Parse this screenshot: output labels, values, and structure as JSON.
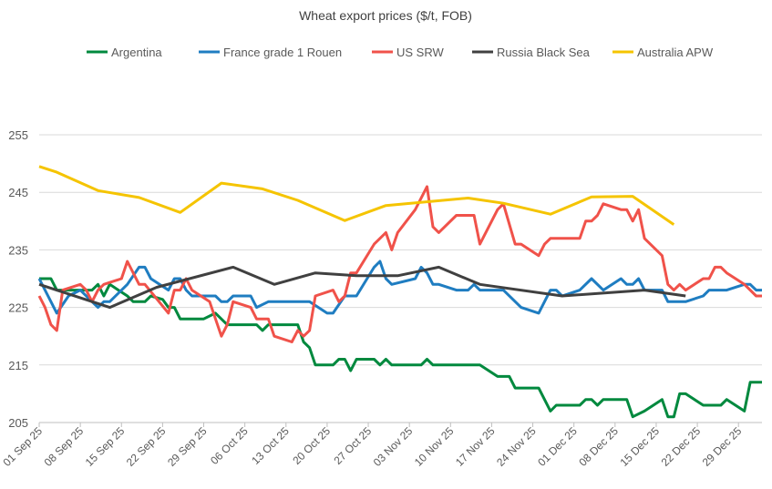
{
  "chart_data": {
    "type": "line",
    "title": "Wheat export prices ($/t, FOB)",
    "xlabel": "",
    "ylabel": "",
    "ylim": [
      205,
      255
    ],
    "xlim": [
      "2025-09-01",
      "2026-01-02"
    ],
    "y_ticks": [
      205,
      215,
      225,
      235,
      245,
      255
    ],
    "x_ticks": [
      {
        "date": "2025-09-01",
        "label": "01 Sep 25"
      },
      {
        "date": "2025-09-08",
        "label": "08 Sep 25"
      },
      {
        "date": "2025-09-15",
        "label": "15 Sep 25"
      },
      {
        "date": "2025-09-22",
        "label": "22 Sep 25"
      },
      {
        "date": "2025-09-29",
        "label": "29 Sep 25"
      },
      {
        "date": "2025-10-06",
        "label": "06 Oct 25"
      },
      {
        "date": "2025-10-13",
        "label": "13 Oct 25"
      },
      {
        "date": "2025-10-20",
        "label": "20 Oct 25"
      },
      {
        "date": "2025-10-27",
        "label": "27 Oct 25"
      },
      {
        "date": "2025-11-03",
        "label": "03 Nov 25"
      },
      {
        "date": "2025-11-10",
        "label": "10 Nov 25"
      },
      {
        "date": "2025-11-17",
        "label": "17 Nov 25"
      },
      {
        "date": "2025-11-24",
        "label": "24 Nov 25"
      },
      {
        "date": "2025-12-01",
        "label": "01 Dec 25"
      },
      {
        "date": "2025-12-08",
        "label": "08 Dec 25"
      },
      {
        "date": "2025-12-15",
        "label": "15 Dec 25"
      },
      {
        "date": "2025-12-22",
        "label": "22 Dec 25"
      },
      {
        "date": "2025-12-29",
        "label": "29 Dec 25"
      }
    ],
    "grid": true,
    "legend_position": "top",
    "series": [
      {
        "name": "Argentina",
        "color": "#00893E",
        "points": [
          [
            "2025-09-01",
            230
          ],
          [
            "2025-09-03",
            230
          ],
          [
            "2025-09-04",
            228
          ],
          [
            "2025-09-10",
            228
          ],
          [
            "2025-09-11",
            229
          ],
          [
            "2025-09-12",
            227
          ],
          [
            "2025-09-13",
            229
          ],
          [
            "2025-09-16",
            227
          ],
          [
            "2025-09-17",
            226
          ],
          [
            "2025-09-19",
            226
          ],
          [
            "2025-09-20",
            227
          ],
          [
            "2025-09-22",
            226.4
          ],
          [
            "2025-09-23",
            225
          ],
          [
            "2025-09-24",
            225
          ],
          [
            "2025-09-25",
            223
          ],
          [
            "2025-09-29",
            223
          ],
          [
            "2025-10-01",
            224
          ],
          [
            "2025-10-03",
            222
          ],
          [
            "2025-10-08",
            222
          ],
          [
            "2025-10-09",
            221
          ],
          [
            "2025-10-10",
            222
          ],
          [
            "2025-10-15",
            222
          ],
          [
            "2025-10-16",
            219
          ],
          [
            "2025-10-17",
            218
          ],
          [
            "2025-10-18",
            215
          ],
          [
            "2025-10-21",
            215
          ],
          [
            "2025-10-22",
            216
          ],
          [
            "2025-10-23",
            216
          ],
          [
            "2025-10-24",
            214
          ],
          [
            "2025-10-25",
            216
          ],
          [
            "2025-10-28",
            216
          ],
          [
            "2025-10-29",
            215
          ],
          [
            "2025-10-30",
            216
          ],
          [
            "2025-10-31",
            215
          ],
          [
            "2025-11-05",
            215
          ],
          [
            "2025-11-06",
            216
          ],
          [
            "2025-11-07",
            215
          ],
          [
            "2025-11-15",
            215
          ],
          [
            "2025-11-18",
            213
          ],
          [
            "2025-11-20",
            213
          ],
          [
            "2025-11-21",
            211
          ],
          [
            "2025-11-25",
            211
          ],
          [
            "2025-11-27",
            207
          ],
          [
            "2025-11-28",
            208
          ],
          [
            "2025-12-02",
            208
          ],
          [
            "2025-12-03",
            209
          ],
          [
            "2025-12-04",
            209
          ],
          [
            "2025-12-05",
            208
          ],
          [
            "2025-12-06",
            209
          ],
          [
            "2025-12-10",
            209
          ],
          [
            "2025-12-11",
            206
          ],
          [
            "2025-12-13",
            207
          ],
          [
            "2025-12-16",
            209
          ],
          [
            "2025-12-17",
            206
          ],
          [
            "2025-12-18",
            206
          ],
          [
            "2025-12-19",
            210
          ],
          [
            "2025-12-20",
            210
          ],
          [
            "2025-12-23",
            208
          ],
          [
            "2025-12-26",
            208
          ],
          [
            "2025-12-27",
            209
          ],
          [
            "2025-12-30",
            207
          ],
          [
            "2025-12-31",
            212
          ],
          [
            "2026-01-02",
            212
          ]
        ]
      },
      {
        "name": "France grade 1 Rouen",
        "color": "#1F7DC1",
        "points": [
          [
            "2025-09-01",
            230
          ],
          [
            "2025-09-03",
            226
          ],
          [
            "2025-09-04",
            224
          ],
          [
            "2025-09-06",
            227
          ],
          [
            "2025-09-08",
            228
          ],
          [
            "2025-09-10",
            226
          ],
          [
            "2025-09-11",
            225
          ],
          [
            "2025-09-12",
            226
          ],
          [
            "2025-09-13",
            226
          ],
          [
            "2025-09-16",
            229
          ],
          [
            "2025-09-18",
            232
          ],
          [
            "2025-09-19",
            232
          ],
          [
            "2025-09-20",
            230
          ],
          [
            "2025-09-23",
            228
          ],
          [
            "2025-09-24",
            230
          ],
          [
            "2025-09-25",
            230
          ],
          [
            "2025-09-26",
            228
          ],
          [
            "2025-09-27",
            227
          ],
          [
            "2025-10-01",
            227
          ],
          [
            "2025-10-02",
            226
          ],
          [
            "2025-10-03",
            226
          ],
          [
            "2025-10-04",
            227
          ],
          [
            "2025-10-07",
            227
          ],
          [
            "2025-10-08",
            225
          ],
          [
            "2025-10-10",
            226
          ],
          [
            "2025-10-17",
            226
          ],
          [
            "2025-10-20",
            224
          ],
          [
            "2025-10-21",
            224
          ],
          [
            "2025-10-23",
            227
          ],
          [
            "2025-10-25",
            227
          ],
          [
            "2025-10-28",
            232
          ],
          [
            "2025-10-29",
            233
          ],
          [
            "2025-10-30",
            230
          ],
          [
            "2025-10-31",
            229
          ],
          [
            "2025-11-04",
            230
          ],
          [
            "2025-11-05",
            232
          ],
          [
            "2025-11-06",
            231
          ],
          [
            "2025-11-07",
            229
          ],
          [
            "2025-11-08",
            229
          ],
          [
            "2025-11-11",
            228
          ],
          [
            "2025-11-13",
            228
          ],
          [
            "2025-11-14",
            229
          ],
          [
            "2025-11-15",
            228
          ],
          [
            "2025-11-19",
            228
          ],
          [
            "2025-11-22",
            225
          ],
          [
            "2025-11-25",
            224
          ],
          [
            "2025-11-27",
            228
          ],
          [
            "2025-11-28",
            228
          ],
          [
            "2025-11-29",
            227
          ],
          [
            "2025-12-02",
            228
          ],
          [
            "2025-12-04",
            230
          ],
          [
            "2025-12-06",
            228
          ],
          [
            "2025-12-09",
            230
          ],
          [
            "2025-12-10",
            229
          ],
          [
            "2025-12-11",
            229
          ],
          [
            "2025-12-12",
            230
          ],
          [
            "2025-12-13",
            228
          ],
          [
            "2025-12-16",
            228
          ],
          [
            "2025-12-17",
            226
          ],
          [
            "2025-12-20",
            226
          ],
          [
            "2025-12-23",
            227
          ],
          [
            "2025-12-24",
            228
          ],
          [
            "2025-12-27",
            228
          ],
          [
            "2025-12-30",
            229
          ],
          [
            "2025-12-31",
            229
          ],
          [
            "2026-01-01",
            228
          ],
          [
            "2026-01-02",
            228
          ]
        ]
      },
      {
        "name": "US SRW",
        "color": "#F0524A",
        "points": [
          [
            "2025-09-01",
            227
          ],
          [
            "2025-09-02",
            225
          ],
          [
            "2025-09-03",
            222
          ],
          [
            "2025-09-04",
            221
          ],
          [
            "2025-09-05",
            228
          ],
          [
            "2025-09-08",
            229
          ],
          [
            "2025-09-09",
            228
          ],
          [
            "2025-09-10",
            226
          ],
          [
            "2025-09-11",
            228
          ],
          [
            "2025-09-12",
            229
          ],
          [
            "2025-09-15",
            230
          ],
          [
            "2025-09-16",
            233
          ],
          [
            "2025-09-18",
            229
          ],
          [
            "2025-09-19",
            229
          ],
          [
            "2025-09-23",
            224
          ],
          [
            "2025-09-24",
            228
          ],
          [
            "2025-09-25",
            228
          ],
          [
            "2025-09-26",
            230
          ],
          [
            "2025-09-27",
            228
          ],
          [
            "2025-09-30",
            226
          ],
          [
            "2025-10-02",
            220
          ],
          [
            "2025-10-03",
            222
          ],
          [
            "2025-10-04",
            226
          ],
          [
            "2025-10-07",
            225
          ],
          [
            "2025-10-08",
            223
          ],
          [
            "2025-10-10",
            223
          ],
          [
            "2025-10-11",
            220
          ],
          [
            "2025-10-14",
            219
          ],
          [
            "2025-10-15",
            221
          ],
          [
            "2025-10-16",
            220
          ],
          [
            "2025-10-17",
            221
          ],
          [
            "2025-10-18",
            227
          ],
          [
            "2025-10-21",
            228
          ],
          [
            "2025-10-22",
            226
          ],
          [
            "2025-10-23",
            227
          ],
          [
            "2025-10-24",
            231
          ],
          [
            "2025-10-25",
            231
          ],
          [
            "2025-10-28",
            236
          ],
          [
            "2025-10-30",
            238
          ],
          [
            "2025-10-31",
            235
          ],
          [
            "2025-11-01",
            238
          ],
          [
            "2025-11-04",
            242
          ],
          [
            "2025-11-06",
            246
          ],
          [
            "2025-11-07",
            239
          ],
          [
            "2025-11-08",
            238
          ],
          [
            "2025-11-11",
            241
          ],
          [
            "2025-11-14",
            241
          ],
          [
            "2025-11-15",
            236
          ],
          [
            "2025-11-18",
            242
          ],
          [
            "2025-11-19",
            243
          ],
          [
            "2025-11-21",
            236
          ],
          [
            "2025-11-22",
            236
          ],
          [
            "2025-11-25",
            234
          ],
          [
            "2025-11-26",
            236
          ],
          [
            "2025-11-27",
            237
          ],
          [
            "2025-12-02",
            237
          ],
          [
            "2025-12-03",
            240
          ],
          [
            "2025-12-04",
            240
          ],
          [
            "2025-12-05",
            241
          ],
          [
            "2025-12-06",
            243
          ],
          [
            "2025-12-09",
            242
          ],
          [
            "2025-12-10",
            242
          ],
          [
            "2025-12-11",
            240
          ],
          [
            "2025-12-12",
            242
          ],
          [
            "2025-12-13",
            237
          ],
          [
            "2025-12-16",
            234
          ],
          [
            "2025-12-17",
            229
          ],
          [
            "2025-12-18",
            228
          ],
          [
            "2025-12-19",
            229
          ],
          [
            "2025-12-20",
            228
          ],
          [
            "2025-12-23",
            230
          ],
          [
            "2025-12-24",
            230
          ],
          [
            "2025-12-25",
            232
          ],
          [
            "2025-12-26",
            232
          ],
          [
            "2025-12-27",
            231
          ],
          [
            "2025-12-30",
            229
          ],
          [
            "2025-12-31",
            228
          ],
          [
            "2026-01-01",
            227
          ],
          [
            "2026-01-02",
            227
          ]
        ]
      },
      {
        "name": "Russia Black Sea",
        "color": "#404040",
        "points": [
          [
            "2025-09-01",
            229
          ],
          [
            "2025-09-13",
            225
          ],
          [
            "2025-09-21",
            228.5
          ],
          [
            "2025-10-04",
            232
          ],
          [
            "2025-10-11",
            229
          ],
          [
            "2025-10-18",
            231
          ],
          [
            "2025-10-25",
            230.5
          ],
          [
            "2025-11-01",
            230.5
          ],
          [
            "2025-11-08",
            232
          ],
          [
            "2025-11-15",
            229
          ],
          [
            "2025-11-29",
            227
          ],
          [
            "2025-12-13",
            228
          ],
          [
            "2025-12-20",
            227
          ]
        ]
      },
      {
        "name": "Australia APW",
        "color": "#F5C400",
        "points": [
          [
            "2025-09-01",
            249.5
          ],
          [
            "2025-09-04",
            248.5
          ],
          [
            "2025-09-11",
            245.3
          ],
          [
            "2025-09-18",
            244.1
          ],
          [
            "2025-09-25",
            241.5
          ],
          [
            "2025-10-02",
            246.6
          ],
          [
            "2025-10-09",
            245.6
          ],
          [
            "2025-10-15",
            243.6
          ],
          [
            "2025-10-23",
            240.1
          ],
          [
            "2025-10-30",
            242.7
          ],
          [
            "2025-11-13",
            244
          ],
          [
            "2025-11-19",
            243.1
          ],
          [
            "2025-11-27",
            241.2
          ],
          [
            "2025-12-04",
            244.2
          ],
          [
            "2025-12-11",
            244.3
          ],
          [
            "2025-12-18",
            239.4
          ]
        ]
      }
    ]
  }
}
